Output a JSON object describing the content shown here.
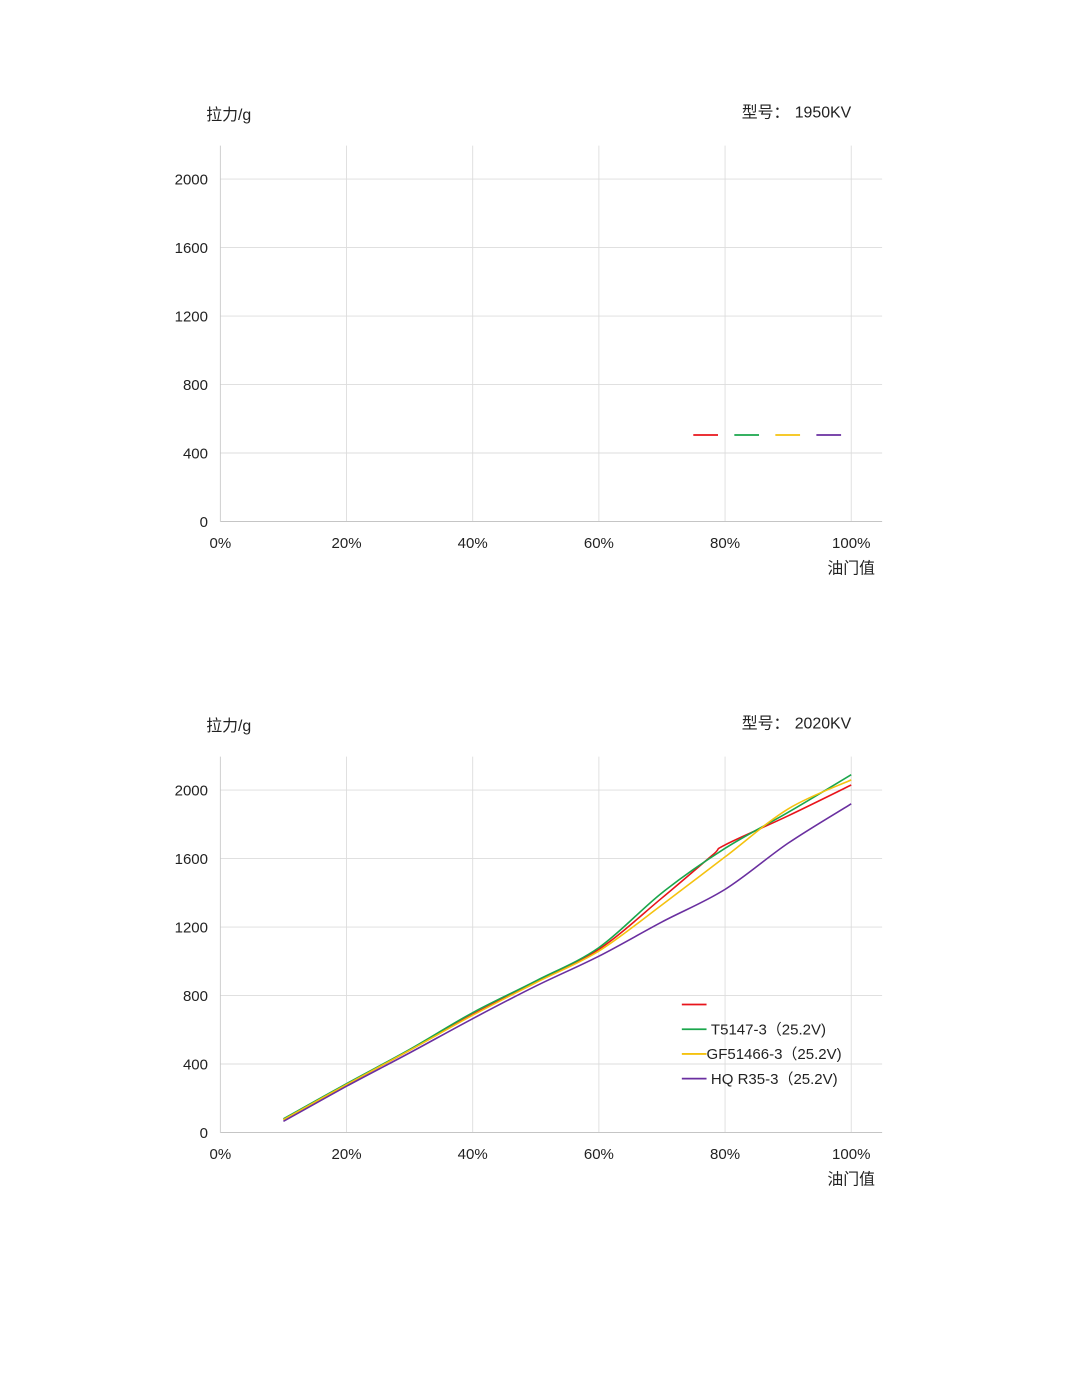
{
  "chart_data": [
    {
      "type": "line",
      "ylabel": "拉力/g",
      "xlabel": "油门值",
      "model_label": "型号：",
      "model": "1950KV",
      "xlim": [
        0,
        100
      ],
      "ylim": [
        0,
        2200
      ],
      "x_ticks": [
        "0%",
        "20%",
        "40%",
        "60%",
        "80%",
        "100%"
      ],
      "y_ticks": [
        "0",
        "400",
        "800",
        "1200",
        "1600",
        "2000"
      ],
      "grid": true,
      "legend_placement": "inline-right",
      "series": [
        {
          "name": "",
          "color": "#e8141b",
          "x": [],
          "y": []
        },
        {
          "name": "",
          "color": "#1aa64c",
          "x": [],
          "y": []
        },
        {
          "name": "",
          "color": "#f5c20f",
          "x": [],
          "y": []
        },
        {
          "name": "",
          "color": "#6a2fa0",
          "x": [],
          "y": []
        }
      ]
    },
    {
      "type": "line",
      "ylabel": "拉力/g",
      "xlabel": "油门值",
      "model_label": "型号：",
      "model": "2020KV",
      "xlim": [
        0,
        100
      ],
      "ylim": [
        0,
        2200
      ],
      "x_ticks": [
        "0%",
        "20%",
        "40%",
        "60%",
        "80%",
        "100%"
      ],
      "y_ticks": [
        "0",
        "400",
        "800",
        "1200",
        "1600",
        "2000"
      ],
      "grid": true,
      "legend_placement": "bottom-right",
      "series": [
        {
          "name": "",
          "color": "#e8141b",
          "x": [
            10,
            20,
            30,
            40,
            50,
            60,
            70,
            78,
            80,
            90,
            100
          ],
          "y": [
            75,
            280,
            480,
            690,
            880,
            1070,
            1370,
            1620,
            1680,
            1850,
            2030
          ]
        },
        {
          "name": "T5147-3（25.2V)",
          "color": "#1aa64c",
          "x": [
            10,
            20,
            30,
            40,
            50,
            60,
            70,
            80,
            90,
            100
          ],
          "y": [
            80,
            285,
            485,
            700,
            885,
            1080,
            1400,
            1660,
            1870,
            2090
          ]
        },
        {
          "name": "GF51466-3（25.2V)",
          "color": "#f5c20f",
          "x": [
            10,
            20,
            30,
            40,
            50,
            60,
            70,
            80,
            90,
            100
          ],
          "y": [
            75,
            280,
            480,
            685,
            875,
            1060,
            1330,
            1610,
            1890,
            2060
          ]
        },
        {
          "name": "HQ R35-3（25.2V)",
          "color": "#6a2fa0",
          "x": [
            10,
            20,
            30,
            40,
            50,
            60,
            70,
            80,
            90,
            100
          ],
          "y": [
            65,
            270,
            465,
            665,
            855,
            1030,
            1230,
            1420,
            1690,
            1920
          ]
        }
      ]
    }
  ]
}
